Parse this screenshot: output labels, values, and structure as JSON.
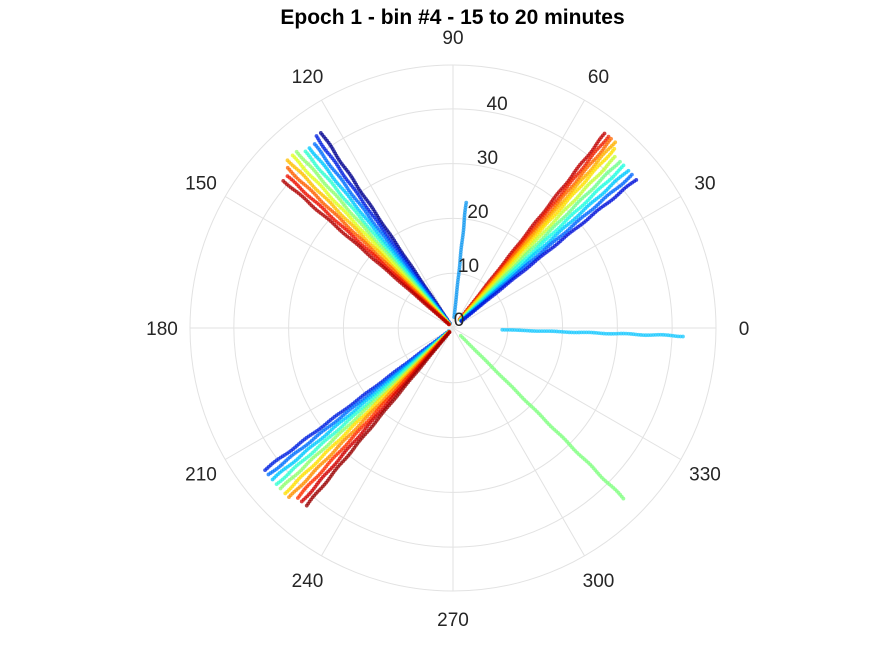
{
  "chart_data": {
    "type": "scatter",
    "subtype": "polar",
    "title": "Epoch 1 - bin #4 - 15 to 20 minutes",
    "theta_unit": "degrees",
    "r_lim": [
      0,
      48
    ],
    "theta_ticks": [
      "0",
      "30",
      "60",
      "90",
      "120",
      "150",
      "180",
      "210",
      "240",
      "270",
      "300",
      "330"
    ],
    "r_ticks": [
      "0",
      "10",
      "20",
      "30",
      "40"
    ],
    "grid": true,
    "colormap": "jet",
    "series": [
      {
        "theta_deg": 52,
        "r_start": 2,
        "r_end": 45,
        "color": "#c00000"
      },
      {
        "theta_deg": 51,
        "r_start": 2,
        "r_end": 45,
        "color": "#ee2200"
      },
      {
        "theta_deg": 50,
        "r_start": 2,
        "r_end": 45,
        "color": "#ff6a00"
      },
      {
        "theta_deg": 49,
        "r_start": 2,
        "r_end": 45,
        "color": "#ffb000"
      },
      {
        "theta_deg": 48,
        "r_start": 2,
        "r_end": 44,
        "color": "#ffe000"
      },
      {
        "theta_deg": 46.5,
        "r_start": 2,
        "r_end": 43,
        "color": "#c6ff38"
      },
      {
        "theta_deg": 45,
        "r_start": 2,
        "r_end": 43,
        "color": "#72ff8c"
      },
      {
        "theta_deg": 43.5,
        "r_start": 2,
        "r_end": 43,
        "color": "#20ffe0"
      },
      {
        "theta_deg": 42,
        "r_start": 2,
        "r_end": 43,
        "color": "#00c8ff"
      },
      {
        "theta_deg": 40.5,
        "r_start": 2,
        "r_end": 43,
        "color": "#0068ff"
      },
      {
        "theta_deg": 39,
        "r_start": 2,
        "r_end": 43,
        "color": "#0010d8"
      },
      {
        "theta_deg": 124,
        "r_start": 1,
        "r_end": 43,
        "color": "#00008f"
      },
      {
        "theta_deg": 125.5,
        "r_start": 1,
        "r_end": 43,
        "color": "#0020e0"
      },
      {
        "theta_deg": 127,
        "r_start": 1,
        "r_end": 42,
        "color": "#0070ff"
      },
      {
        "theta_deg": 128.5,
        "r_start": 1,
        "r_end": 42,
        "color": "#00c8ff"
      },
      {
        "theta_deg": 130,
        "r_start": 1,
        "r_end": 42,
        "color": "#30ffd0"
      },
      {
        "theta_deg": 131.5,
        "r_start": 1,
        "r_end": 43,
        "color": "#90ff70"
      },
      {
        "theta_deg": 133,
        "r_start": 1,
        "r_end": 43,
        "color": "#e0ff20"
      },
      {
        "theta_deg": 134.5,
        "r_start": 1,
        "r_end": 43,
        "color": "#ffc000"
      },
      {
        "theta_deg": 136,
        "r_start": 1,
        "r_end": 42,
        "color": "#ff6000"
      },
      {
        "theta_deg": 137.5,
        "r_start": 1,
        "r_end": 41,
        "color": "#ee1100"
      },
      {
        "theta_deg": 139,
        "r_start": 1,
        "r_end": 41,
        "color": "#b00000"
      },
      {
        "theta_deg": 217,
        "r_start": 1,
        "r_end": 43,
        "color": "#0020e0"
      },
      {
        "theta_deg": 218.5,
        "r_start": 1,
        "r_end": 43,
        "color": "#0070ff"
      },
      {
        "theta_deg": 220,
        "r_start": 1,
        "r_end": 43,
        "color": "#00c8ff"
      },
      {
        "theta_deg": 221.5,
        "r_start": 1,
        "r_end": 43,
        "color": "#30ffd0"
      },
      {
        "theta_deg": 223,
        "r_start": 1,
        "r_end": 43,
        "color": "#90ff70"
      },
      {
        "theta_deg": 224.5,
        "r_start": 1,
        "r_end": 43,
        "color": "#ffe000"
      },
      {
        "theta_deg": 226,
        "r_start": 1,
        "r_end": 43,
        "color": "#ff9000"
      },
      {
        "theta_deg": 227.5,
        "r_start": 1,
        "r_end": 42,
        "color": "#ff3000"
      },
      {
        "theta_deg": 229,
        "r_start": 1,
        "r_end": 42,
        "color": "#d00000"
      },
      {
        "theta_deg": 230.5,
        "r_start": 1,
        "r_end": 42,
        "color": "#9a0000"
      },
      {
        "theta_deg": 84,
        "r_start": 2,
        "r_end": 23,
        "color": "#1098f0"
      },
      {
        "theta_deg": 358,
        "r_start": 9,
        "r_end": 42,
        "color": "#18c8ff"
      },
      {
        "theta_deg": 315,
        "r_start": 2,
        "r_end": 44,
        "color": "#80ff80"
      }
    ]
  }
}
